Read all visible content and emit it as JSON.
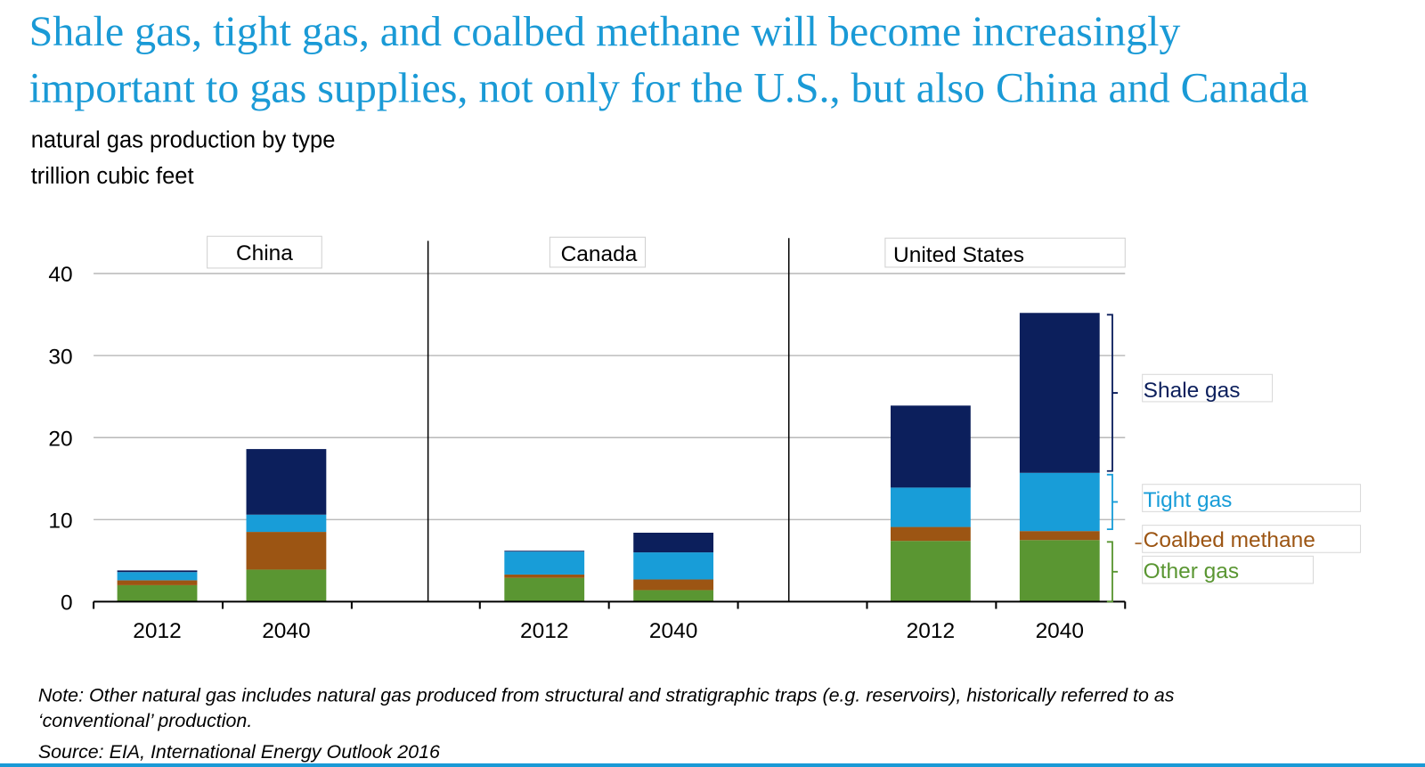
{
  "title_lines": [
    "Shale gas, tight gas, and coalbed methane will become increasingly",
    "important to gas supplies, not only for the U.S., but also China and Canada"
  ],
  "subtitle": "natural gas production by type",
  "units": "trillion cubic feet",
  "note_lines": [
    "Note: Other natural gas includes natural gas produced from structural and stratigraphic traps (e.g. reservoirs), historically referred to as",
    "‘conventional’ production."
  ],
  "source": "Source:  EIA, International Energy Outlook 2016",
  "chart_data": {
    "type": "bar",
    "stacked": true,
    "ylim": [
      0,
      40
    ],
    "yticks": [
      "0",
      "10",
      "20",
      "30",
      "40"
    ],
    "grid": true,
    "legend_placement": "right",
    "panels": [
      {
        "name": "China",
        "categories": [
          "2012",
          "2040"
        ]
      },
      {
        "name": "Canada",
        "categories": [
          "2012",
          "2040"
        ]
      },
      {
        "name": "United States",
        "categories": [
          "2012",
          "2040"
        ]
      }
    ],
    "series": [
      {
        "name": "Other gas",
        "color": "#5a9632",
        "values": [
          2.0,
          3.9,
          2.9,
          1.4,
          7.4,
          7.5
        ]
      },
      {
        "name": "Coalbed methane",
        "color": "#9c5513",
        "values": [
          0.6,
          4.6,
          0.4,
          1.3,
          1.7,
          1.1
        ]
      },
      {
        "name": "Tight gas",
        "color": "#189dd8",
        "values": [
          1.0,
          2.1,
          2.8,
          3.3,
          4.8,
          7.1
        ]
      },
      {
        "name": "Shale gas",
        "color": "#0c1f5c",
        "values": [
          0.2,
          8.0,
          0.1,
          2.4,
          10.0,
          19.5
        ]
      }
    ]
  }
}
